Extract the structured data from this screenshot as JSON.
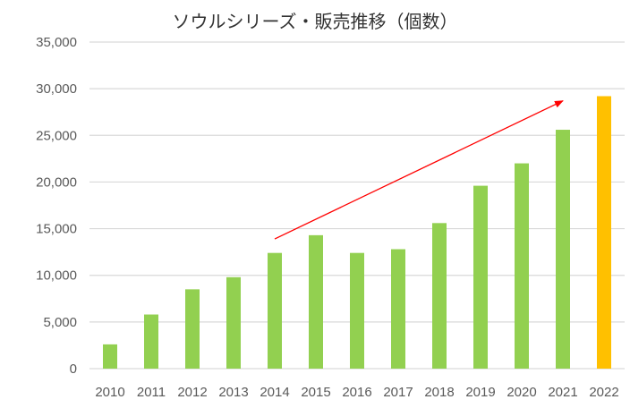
{
  "chart_data": {
    "type": "bar",
    "title": "ソウルシリーズ・販売推移（個数）",
    "xlabel": "",
    "ylabel": "",
    "ylim": [
      0,
      35000
    ],
    "yticks": [
      "0",
      "5,000",
      "10,000",
      "15,000",
      "20,000",
      "25,000",
      "30,000",
      "35,000"
    ],
    "ytick_values": [
      0,
      5000,
      10000,
      15000,
      20000,
      25000,
      30000,
      35000
    ],
    "categories": [
      "2010",
      "2011",
      "2012",
      "2013",
      "2014",
      "2015",
      "2016",
      "2017",
      "2018",
      "2019",
      "2020",
      "2021",
      "2022"
    ],
    "values": [
      2600,
      5800,
      8500,
      9800,
      12400,
      14300,
      12400,
      12800,
      15600,
      19600,
      22000,
      25600,
      29200
    ],
    "grid": true,
    "legend": "none",
    "colors": {
      "bar": "#92D050",
      "highlight_bar": "#FFC000",
      "trend_arrow": "#FF0000",
      "grid": "#D9D9D9",
      "axis_text": "#595959"
    },
    "highlight_category": "2022",
    "annotations": [
      {
        "type": "trend-arrow",
        "from": {
          "x": "2014",
          "y": 13900
        },
        "to": {
          "x": "2021",
          "y": 28700
        },
        "color": "#FF0000"
      }
    ]
  }
}
